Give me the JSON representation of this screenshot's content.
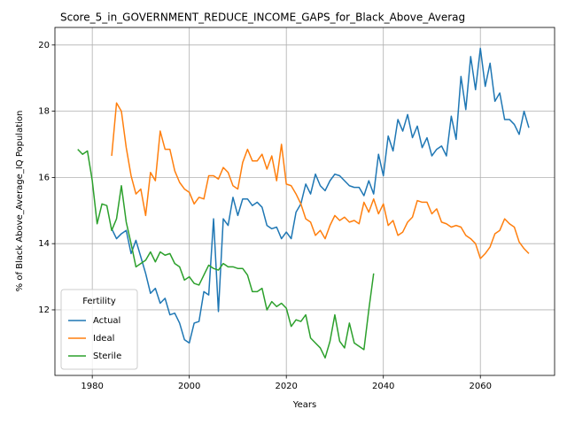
{
  "chart_data": {
    "type": "line",
    "title": "Score_5_in_GOVERNMENT_REDUCE_INCOME_GAPS_for_Black_Above_Averag",
    "x_label": "Years",
    "y_label": "% of Black Above_Average_IQ Population",
    "legend_title": "Fertility",
    "legend": "lower left",
    "grid": true,
    "xlim": [
      1972.3,
      2075.3
    ],
    "ylim": [
      10.02,
      20.53
    ],
    "xticks": [
      1980,
      2000,
      2020,
      2040,
      2060
    ],
    "yticks": [
      12,
      14,
      16,
      18,
      20
    ],
    "x": [
      1977,
      1978,
      1979,
      1980,
      1981,
      1982,
      1983,
      1984,
      1985,
      1986,
      1987,
      1988,
      1989,
      1990,
      1991,
      1992,
      1993,
      1994,
      1995,
      1996,
      1997,
      1998,
      1999,
      2000,
      2001,
      2002,
      2003,
      2004,
      2005,
      2006,
      2007,
      2008,
      2009,
      2010,
      2011,
      2012,
      2013,
      2014,
      2015,
      2016,
      2017,
      2018,
      2019,
      2020,
      2021,
      2022,
      2023,
      2024,
      2025,
      2026,
      2027,
      2028,
      2029,
      2030,
      2031,
      2032,
      2033,
      2034,
      2035,
      2036,
      2037,
      2038,
      2039,
      2040,
      2041,
      2042,
      2043,
      2044,
      2045,
      2046,
      2047,
      2048,
      2049,
      2050,
      2051,
      2052,
      2053,
      2054,
      2055,
      2056,
      2057,
      2058,
      2059,
      2060,
      2061,
      2062,
      2063,
      2064,
      2065,
      2066,
      2067,
      2068,
      2069,
      2070
    ],
    "series": [
      {
        "name": "Actual",
        "color": "#1f77b4",
        "values": [
          null,
          null,
          null,
          null,
          null,
          null,
          null,
          14.45,
          14.15,
          14.3,
          14.4,
          13.7,
          14.1,
          13.6,
          13.1,
          12.5,
          12.65,
          12.2,
          12.35,
          11.85,
          11.9,
          11.6,
          11.1,
          11.0,
          11.6,
          11.65,
          12.55,
          12.45,
          14.75,
          11.95,
          14.75,
          14.55,
          15.4,
          14.85,
          15.35,
          15.35,
          15.15,
          15.25,
          15.1,
          14.55,
          14.45,
          14.5,
          14.15,
          14.35,
          14.15,
          14.95,
          15.2,
          15.8,
          15.5,
          16.1,
          15.75,
          15.6,
          15.9,
          16.1,
          16.05,
          15.9,
          15.75,
          15.7,
          15.7,
          15.45,
          15.9,
          15.5,
          16.7,
          16.05,
          17.25,
          16.8,
          17.75,
          17.4,
          17.9,
          17.2,
          17.55,
          16.9,
          17.2,
          16.65,
          16.85,
          16.95,
          16.65,
          17.85,
          17.15,
          19.05,
          18.05,
          19.65,
          18.65,
          19.9,
          18.75,
          19.45,
          18.3,
          18.55,
          17.75,
          17.75,
          17.6,
          17.3,
          18.0,
          17.5
        ]
      },
      {
        "name": "Ideal",
        "color": "#ff7f0e",
        "values": [
          null,
          null,
          null,
          null,
          null,
          null,
          null,
          16.65,
          18.25,
          18.0,
          16.9,
          16.05,
          15.5,
          15.65,
          14.85,
          16.15,
          15.9,
          17.4,
          16.85,
          16.85,
          16.2,
          15.85,
          15.65,
          15.55,
          15.2,
          15.4,
          15.35,
          16.05,
          16.05,
          15.95,
          16.3,
          16.15,
          15.75,
          15.65,
          16.45,
          16.85,
          16.5,
          16.5,
          16.7,
          16.25,
          16.65,
          15.9,
          17.0,
          15.8,
          15.75,
          15.5,
          15.2,
          14.75,
          14.65,
          14.25,
          14.4,
          14.15,
          14.55,
          14.85,
          14.7,
          14.8,
          14.65,
          14.7,
          14.6,
          15.25,
          14.95,
          15.35,
          14.9,
          15.2,
          14.55,
          14.7,
          14.25,
          14.35,
          14.65,
          14.8,
          15.3,
          15.25,
          15.25,
          14.9,
          15.05,
          14.65,
          14.6,
          14.5,
          14.55,
          14.5,
          14.25,
          14.15,
          14.0,
          13.55,
          13.7,
          13.9,
          14.3,
          14.4,
          14.75,
          14.6,
          14.5,
          14.05,
          13.85,
          13.7
        ]
      },
      {
        "name": "Sterile",
        "color": "#2ca02c",
        "values": [
          16.85,
          16.7,
          16.8,
          15.9,
          14.6,
          15.2,
          15.15,
          14.4,
          14.75,
          15.75,
          14.65,
          14.0,
          13.3,
          13.4,
          13.5,
          13.75,
          13.45,
          13.75,
          13.65,
          13.7,
          13.4,
          13.3,
          12.9,
          13.0,
          12.8,
          12.75,
          13.05,
          13.35,
          13.25,
          13.2,
          13.4,
          13.3,
          13.3,
          13.25,
          13.25,
          13.05,
          12.55,
          12.55,
          12.65,
          12.0,
          12.25,
          12.1,
          12.2,
          12.05,
          11.5,
          11.7,
          11.65,
          11.85,
          11.15,
          11.0,
          10.85,
          10.55,
          11.05,
          11.85,
          11.05,
          10.85,
          11.6,
          11.0,
          10.9,
          10.8,
          12.0,
          13.1,
          null,
          null,
          null,
          null,
          null,
          null,
          null,
          null,
          null,
          null,
          null,
          null,
          null,
          null,
          null,
          null,
          null,
          null,
          null,
          null,
          null,
          null,
          null,
          null,
          null,
          null,
          null,
          null,
          null,
          null,
          null,
          null
        ]
      }
    ]
  }
}
